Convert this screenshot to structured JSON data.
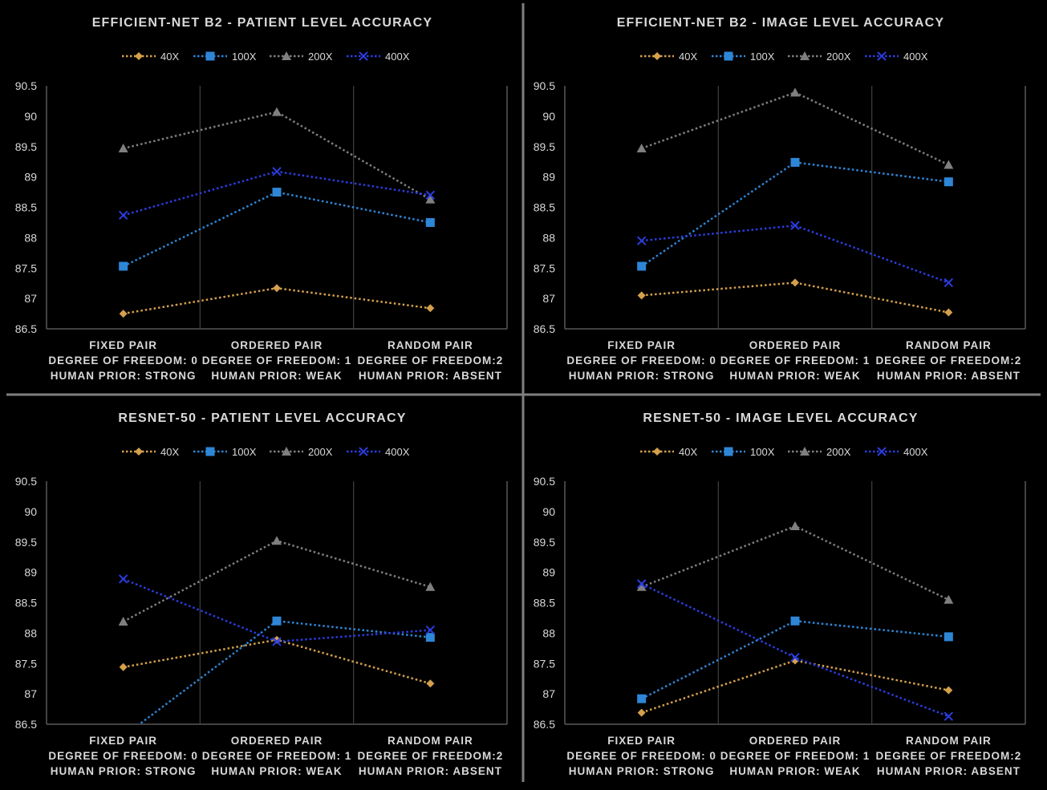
{
  "colors": {
    "background": "#000000",
    "text": "#d9d9d9",
    "title": "#d9d9d9",
    "axis": "#595959",
    "grid_divider": "#404040",
    "panel_divider": "#7f7f7f",
    "s40x": "#d4a04c",
    "s100x": "#2e86d6",
    "s200x": "#7f7f7f",
    "s400x": "#2b3de0"
  },
  "chart_data": [
    {
      "type": "line",
      "title": "EFFICIENT-NET B2 - PATIENT LEVEL ACCURACY",
      "categories": [
        [
          "FIXED PAIR",
          "DEGREE OF FREEDOM: 0",
          "HUMAN PRIOR: STRONG"
        ],
        [
          "ORDERED PAIR",
          "DEGREE OF FREEDOM: 1",
          "HUMAN PRIOR: WEAK"
        ],
        [
          "RANDOM PAIR",
          "DEGREE OF FREEDOM:2",
          "HUMAN PRIOR: ABSENT"
        ]
      ],
      "ylim": [
        86.5,
        90.5
      ],
      "yticks": [
        "86.5",
        "87",
        "87.5",
        "88",
        "88.5",
        "89",
        "89.5",
        "90",
        "90.5"
      ],
      "legend_position": "top",
      "series": [
        {
          "name": "40X",
          "marker": "diamond",
          "values": [
            86.75,
            87.17,
            86.84
          ]
        },
        {
          "name": "100X",
          "marker": "square",
          "values": [
            87.53,
            88.75,
            88.25
          ]
        },
        {
          "name": "200X",
          "marker": "triangle",
          "values": [
            89.47,
            90.07,
            88.63
          ]
        },
        {
          "name": "400X",
          "marker": "x",
          "values": [
            88.37,
            89.09,
            88.7
          ]
        }
      ]
    },
    {
      "type": "line",
      "title": "EFFICIENT-NET B2 - IMAGE LEVEL ACCURACY",
      "categories": [
        [
          "FIXED PAIR",
          "DEGREE OF FREEDOM: 0",
          "HUMAN PRIOR: STRONG"
        ],
        [
          "ORDERED PAIR",
          "DEGREE OF FREEDOM: 1",
          "HUMAN PRIOR: WEAK"
        ],
        [
          "RANDOM PAIR",
          "DEGREE OF FREEDOM:2",
          "HUMAN PRIOR: ABSENT"
        ]
      ],
      "ylim": [
        86.5,
        90.5
      ],
      "yticks": [
        "86.5",
        "87",
        "87.5",
        "88",
        "88.5",
        "89",
        "89.5",
        "90",
        "90.5"
      ],
      "legend_position": "top",
      "series": [
        {
          "name": "40X",
          "marker": "diamond",
          "values": [
            87.05,
            87.26,
            86.77
          ]
        },
        {
          "name": "100X",
          "marker": "square",
          "values": [
            87.53,
            89.24,
            88.92
          ]
        },
        {
          "name": "200X",
          "marker": "triangle",
          "values": [
            89.47,
            90.39,
            89.2
          ]
        },
        {
          "name": "400X",
          "marker": "x",
          "values": [
            87.95,
            88.2,
            87.26
          ]
        }
      ]
    },
    {
      "type": "line",
      "title": "RESNET-50 - PATIENT LEVEL ACCURACY",
      "categories": [
        [
          "FIXED PAIR",
          "DEGREE OF FREEDOM: 0",
          "HUMAN PRIOR: STRONG"
        ],
        [
          "ORDERED PAIR",
          "DEGREE OF FREEDOM: 1",
          "HUMAN PRIOR: WEAK"
        ],
        [
          "RANDOM PAIR",
          "DEGREE OF FREEDOM:2",
          "HUMAN PRIOR: ABSENT"
        ]
      ],
      "ylim": [
        86.5,
        90.5
      ],
      "yticks": [
        "86.5",
        "87",
        "87.5",
        "88",
        "88.5",
        "89",
        "89.5",
        "90",
        "90.5"
      ],
      "legend_position": "top",
      "series": [
        {
          "name": "40X",
          "marker": "diamond",
          "values": [
            87.44,
            87.89,
            87.17
          ]
        },
        {
          "name": "100X",
          "marker": "square",
          "values": [
            86.3,
            88.2,
            87.93
          ]
        },
        {
          "name": "200X",
          "marker": "triangle",
          "values": [
            88.19,
            89.52,
            88.76
          ]
        },
        {
          "name": "400X",
          "marker": "x",
          "values": [
            88.89,
            87.86,
            88.05
          ]
        }
      ]
    },
    {
      "type": "line",
      "title": "RESNET-50 - IMAGE LEVEL ACCURACY",
      "categories": [
        [
          "FIXED PAIR",
          "DEGREE OF FREEDOM: 0",
          "HUMAN PRIOR: STRONG"
        ],
        [
          "ORDERED PAIR",
          "DEGREE OF FREEDOM: 1",
          "HUMAN PRIOR: WEAK"
        ],
        [
          "RANDOM PAIR",
          "DEGREE OF FREEDOM:2",
          "HUMAN PRIOR: ABSENT"
        ]
      ],
      "ylim": [
        86.5,
        90.5
      ],
      "yticks": [
        "86.5",
        "87",
        "87.5",
        "88",
        "88.5",
        "89",
        "89.5",
        "90",
        "90.5"
      ],
      "legend_position": "top",
      "series": [
        {
          "name": "40X",
          "marker": "diamond",
          "values": [
            86.69,
            87.55,
            87.06
          ]
        },
        {
          "name": "100X",
          "marker": "square",
          "values": [
            86.92,
            88.2,
            87.94
          ]
        },
        {
          "name": "200X",
          "marker": "triangle",
          "values": [
            88.76,
            89.76,
            88.55
          ]
        },
        {
          "name": "400X",
          "marker": "x",
          "values": [
            88.81,
            87.6,
            86.63
          ]
        }
      ]
    }
  ]
}
